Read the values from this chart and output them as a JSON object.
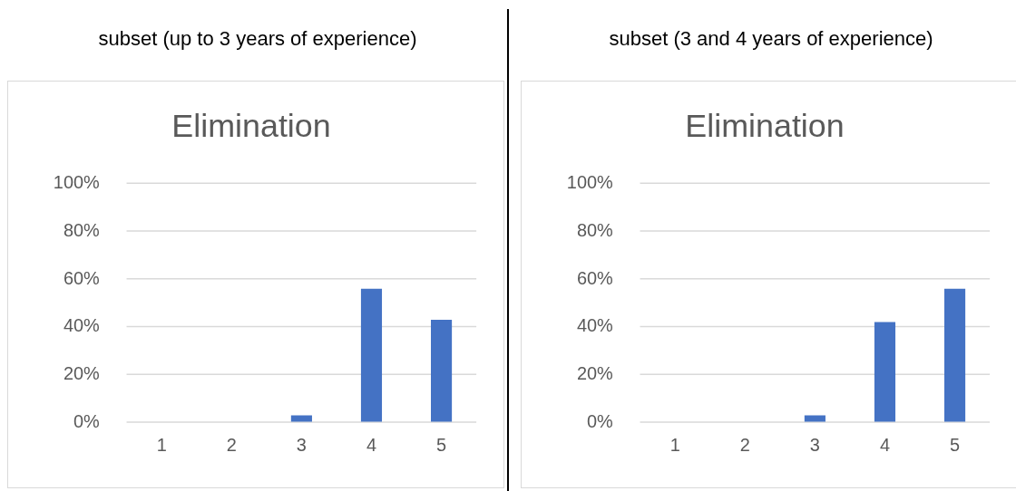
{
  "chart_data": [
    {
      "type": "bar",
      "subtitle": "subset (up to 3 years of experience)",
      "title": "Elimination",
      "categories": [
        "1",
        "2",
        "3",
        "4",
        "5"
      ],
      "values": [
        0,
        0,
        3,
        56,
        43
      ],
      "color": "#4472c4",
      "ylim": [
        0,
        100
      ],
      "yticks": [
        {
          "value": 0,
          "label": "0%"
        },
        {
          "value": 20,
          "label": "20%"
        },
        {
          "value": 40,
          "label": "40%"
        },
        {
          "value": 60,
          "label": "60%"
        },
        {
          "value": 80,
          "label": "80%"
        },
        {
          "value": 100,
          "label": "100%"
        }
      ],
      "grid": "y",
      "legend": false
    },
    {
      "type": "bar",
      "subtitle": "subset (3 and 4 years of experience)",
      "title": "Elimination",
      "categories": [
        "1",
        "2",
        "3",
        "4",
        "5"
      ],
      "values": [
        0,
        0,
        3,
        42,
        56
      ],
      "color": "#4472c4",
      "ylim": [
        0,
        100
      ],
      "yticks": [
        {
          "value": 0,
          "label": "0%"
        },
        {
          "value": 20,
          "label": "20%"
        },
        {
          "value": 40,
          "label": "40%"
        },
        {
          "value": 60,
          "label": "60%"
        },
        {
          "value": 80,
          "label": "80%"
        },
        {
          "value": 100,
          "label": "100%"
        }
      ],
      "grid": "y",
      "legend": false
    }
  ]
}
